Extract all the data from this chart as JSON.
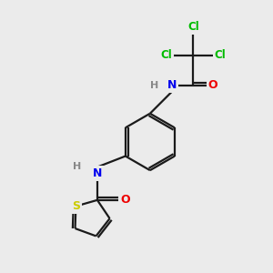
{
  "bg_color": "#ebebeb",
  "lc": "#1a1a1a",
  "atom_colors": {
    "Cl": "#00bb00",
    "N": "#0000ee",
    "O": "#ee0000",
    "S": "#cccc00",
    "H": "#888888"
  },
  "figsize": [
    3.0,
    3.0
  ],
  "dpi": 100
}
